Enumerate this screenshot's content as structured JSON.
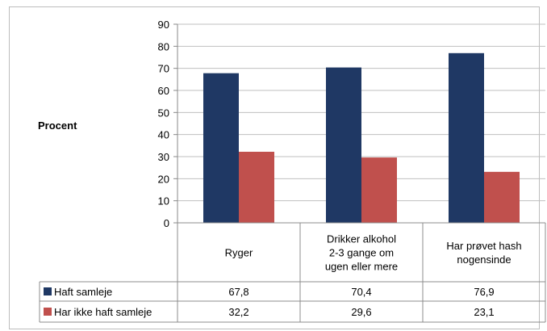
{
  "chart_data": {
    "type": "bar",
    "ylabel": "Procent",
    "ylim": [
      0,
      90
    ],
    "yticks": [
      0,
      10,
      20,
      30,
      40,
      50,
      60,
      70,
      80,
      90
    ],
    "grid": true,
    "categories": [
      [
        "Ryger"
      ],
      [
        "Drikker alkohol",
        "2-3 gange om",
        "ugen eller mere"
      ],
      [
        "Har prøvet hash",
        "nogensinde"
      ]
    ],
    "series": [
      {
        "name": "Haft samleje",
        "color": "#1f3864",
        "values": [
          67.8,
          70.4,
          76.9
        ],
        "labels": [
          "67,8",
          "70,4",
          "76,9"
        ]
      },
      {
        "name": "Har ikke haft samleje",
        "color": "#c0504d",
        "values": [
          32.2,
          29.6,
          23.1
        ],
        "labels": [
          "32,2",
          "29,6",
          "23,1"
        ]
      }
    ],
    "legend": "data-table"
  }
}
